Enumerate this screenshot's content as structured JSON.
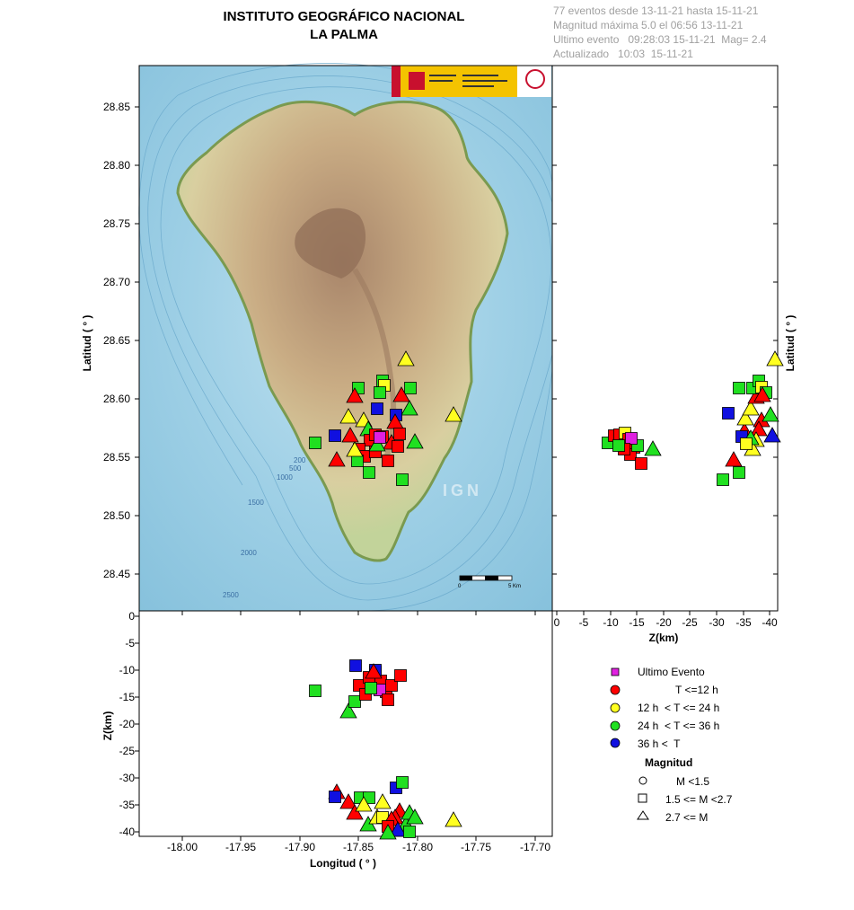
{
  "header": {
    "title_line1": "INSTITUTO GEOGRÁFICO NACIONAL",
    "title_line2": "LA PALMA",
    "info": [
      "77 eventos desde 13-11-21 hasta 15-11-21",
      "Magnitud máxima 5.0 el 06:56 13-11-21",
      "Ultimo evento   09:28:03 15-11-21  Mag= 2.4",
      "Actualizado   10:03  15-11-21"
    ]
  },
  "map": {
    "lat_label": "Latitud ( ° )",
    "lon_label": "Longitud ( ° )",
    "z_label": "Z(km)",
    "lat_ticks": [
      "28.85",
      "28.80",
      "28.75",
      "28.70",
      "28.65",
      "28.60",
      "28.55",
      "28.50",
      "28.45"
    ],
    "lon_ticks": [
      "-18.00",
      "-17.95",
      "-17.90",
      "-17.85",
      "-17.80",
      "-17.75",
      "-17.70"
    ],
    "zdepth_ticks": [
      "0",
      "-5",
      "-10",
      "-15",
      "-20",
      "-25",
      "-30",
      "-35",
      "-40"
    ],
    "zside_ticks": [
      "0",
      "-5",
      "-10",
      "-15",
      "-20",
      "-25",
      "-30",
      "-35",
      "-40"
    ],
    "bathy_labels": [
      "200",
      "500",
      "1000",
      "1500",
      "2000",
      "2500"
    ],
    "watermark": "IGN",
    "scalebar": {
      "start": "0",
      "end": "5 Km"
    }
  },
  "legend": {
    "last_event": "Ultimo Evento",
    "t1": "T <=12 h",
    "t2": "12 h  < T <= 24 h",
    "t3": "24 h  < T <= 36 h",
    "t4": "36 h <  T",
    "mag_title": "Magnitud",
    "m1": "M <1.5",
    "m2": "1.5 <= M <2.7",
    "m3": "2.7 <= M",
    "colors": {
      "last": "#e020e0",
      "t1": "#ff0000",
      "t2": "#ffff20",
      "t3": "#20e020",
      "t4": "#1010e0"
    }
  }
}
